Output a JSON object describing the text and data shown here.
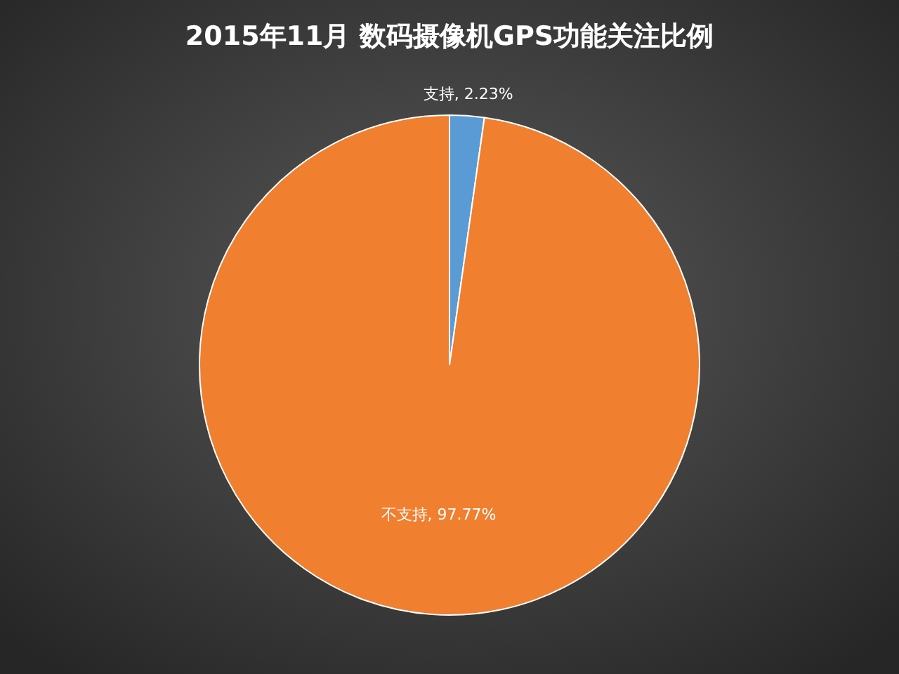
{
  "chart_data": {
    "type": "pie",
    "title": "2015年11月 数码摄像机GPS功能关注比例",
    "categories": [
      "支持",
      "不支持"
    ],
    "values": [
      2.23,
      97.77
    ],
    "value_labels": [
      ", 2.23%",
      ", 97.77%"
    ],
    "colors": [
      "#5b9bd5",
      "#f07f30"
    ]
  }
}
